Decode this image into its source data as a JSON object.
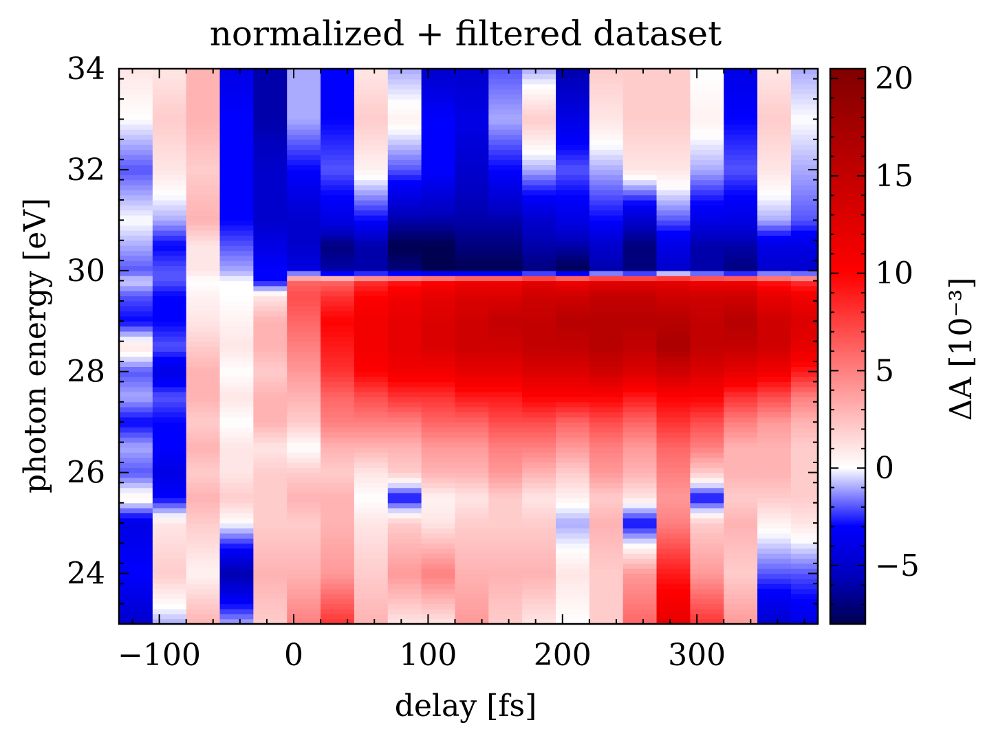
{
  "chart_data": {
    "type": "heatmap",
    "title": "normalized + filtered dataset",
    "xlabel": "delay [fs]",
    "ylabel": "photon energy [eV]",
    "colorbar_label": "ΔA [10⁻³]",
    "xlim": [
      -130,
      390
    ],
    "ylim": [
      23,
      34
    ],
    "clim": [
      -8,
      20.5
    ],
    "colormap": "seismic",
    "x_ticks": [
      {
        "value": -100,
        "label": "−100"
      },
      {
        "value": 0,
        "label": "0"
      },
      {
        "value": 100,
        "label": "100"
      },
      {
        "value": 200,
        "label": "200"
      },
      {
        "value": 300,
        "label": "300"
      }
    ],
    "y_ticks": [
      {
        "value": 24,
        "label": "24"
      },
      {
        "value": 26,
        "label": "26"
      },
      {
        "value": 28,
        "label": "28"
      },
      {
        "value": 30,
        "label": "30"
      },
      {
        "value": 32,
        "label": "32"
      },
      {
        "value": 34,
        "label": "34"
      }
    ],
    "colorbar_ticks": [
      {
        "value": -5,
        "label": "−5"
      },
      {
        "value": 0,
        "label": "0"
      },
      {
        "value": 5,
        "label": "5"
      },
      {
        "value": 10,
        "label": "10"
      },
      {
        "value": 15,
        "label": "15"
      },
      {
        "value": 20,
        "label": "20"
      }
    ],
    "x_edges": [
      -130,
      -105,
      -80,
      -55,
      -30,
      -5,
      20,
      45,
      70,
      95,
      120,
      145,
      170,
      195,
      220,
      245,
      270,
      295,
      320,
      345,
      370,
      390
    ],
    "profile_energy": [
      23,
      24,
      25,
      25.5,
      26,
      26.5,
      27,
      27.5,
      28,
      28.5,
      29,
      29.5,
      29.8,
      30,
      30.5,
      31,
      32,
      33,
      34
    ],
    "columns": [
      [
        -5,
        -3,
        -4,
        0.5,
        -2,
        -1,
        -3,
        -1,
        -2,
        1,
        -3,
        -2,
        -0.5,
        -2,
        -1,
        0,
        -2,
        0,
        1
      ],
      [
        -1,
        2,
        1,
        -3,
        -4,
        -3,
        -3,
        -2,
        -4,
        -2,
        -3,
        -3,
        -2,
        -2,
        -3,
        -1,
        1,
        2,
        1
      ],
      [
        3,
        0.5,
        2,
        3,
        2,
        3,
        2,
        3,
        3,
        2,
        1,
        0.5,
        0,
        1,
        1,
        3,
        2,
        3,
        3
      ],
      [
        -1,
        -6,
        0,
        2,
        1,
        1,
        0,
        1,
        0,
        1,
        0.5,
        0,
        0,
        -1,
        -2,
        -3,
        -3,
        -3,
        -4
      ],
      [
        2,
        3,
        2,
        2,
        2,
        1,
        3,
        3,
        2,
        3,
        3,
        1,
        -3,
        -3,
        -4,
        -5,
        -5,
        -6,
        -6
      ],
      [
        5,
        3,
        2,
        3,
        2,
        0,
        2,
        3,
        4,
        5,
        6,
        7,
        6,
        -4,
        -5,
        -5,
        -3,
        -1,
        -1
      ],
      [
        8,
        4,
        3,
        3,
        2,
        3,
        5,
        6,
        8,
        9,
        10,
        8,
        6,
        -6,
        -7,
        -4,
        -2,
        -3,
        -3
      ],
      [
        3,
        2,
        1,
        0,
        1,
        3,
        5,
        7,
        10,
        11,
        11,
        10,
        8,
        -6,
        -6,
        -3,
        0.5,
        2,
        1
      ],
      [
        1,
        4,
        2,
        -3,
        2,
        3,
        5,
        8,
        11,
        12,
        12,
        11,
        9,
        -7,
        -8,
        -6,
        -2,
        0.5,
        -1
      ],
      [
        1,
        5,
        1,
        0.5,
        3,
        4,
        6,
        8,
        11,
        13,
        13,
        12,
        10,
        -8,
        -8,
        -6,
        -3,
        -3,
        -5
      ],
      [
        4,
        3,
        2,
        1,
        3,
        4,
        6,
        9,
        12,
        14,
        14,
        13,
        11,
        -8,
        -7,
        -6,
        -5,
        -4,
        -5
      ],
      [
        2,
        3,
        2,
        2,
        4,
        5,
        7,
        9,
        12,
        14,
        15,
        13,
        11,
        -8,
        -7,
        -6,
        -3,
        -1,
        -2
      ],
      [
        1,
        3,
        2,
        1,
        3,
        5,
        7,
        10,
        13,
        15,
        15,
        14,
        12,
        -7,
        -6,
        -5,
        -1,
        2,
        -1
      ],
      [
        0,
        1,
        -1,
        0.5,
        2,
        4,
        6,
        10,
        13,
        15,
        16,
        14,
        11,
        -8,
        -6,
        -4,
        -2,
        -4,
        -6
      ],
      [
        2,
        2,
        3,
        2,
        4,
        5,
        7,
        10,
        14,
        16,
        16,
        15,
        12,
        -6,
        -5,
        -3,
        -1,
        1,
        2
      ],
      [
        6,
        4,
        -3,
        1,
        3,
        4,
        6,
        9,
        13,
        15,
        16,
        15,
        12,
        -7,
        -7,
        -5,
        1,
        2,
        2
      ],
      [
        12,
        9,
        5,
        4,
        5,
        6,
        8,
        10,
        14,
        17,
        16,
        14,
        12,
        -5,
        -4,
        -2,
        1,
        2,
        2
      ],
      [
        8,
        4,
        2,
        -3,
        2,
        5,
        7,
        10,
        13,
        15,
        15,
        14,
        11,
        -6,
        -6,
        -4,
        -1,
        0.5,
        0
      ],
      [
        4,
        2,
        3,
        2,
        3,
        3,
        5,
        8,
        12,
        15,
        16,
        14,
        11,
        -7,
        -6,
        -4,
        -2,
        -3,
        -4
      ],
      [
        -5,
        -2,
        0.5,
        2,
        3,
        3,
        4,
        7,
        11,
        14,
        14,
        12,
        9,
        -5,
        -4,
        -1,
        1,
        2,
        1
      ],
      [
        -4,
        -2,
        1,
        2,
        2,
        2,
        3,
        5,
        9,
        12,
        13,
        11,
        8,
        -5,
        -4,
        -2,
        -1,
        0,
        -1
      ]
    ]
  }
}
